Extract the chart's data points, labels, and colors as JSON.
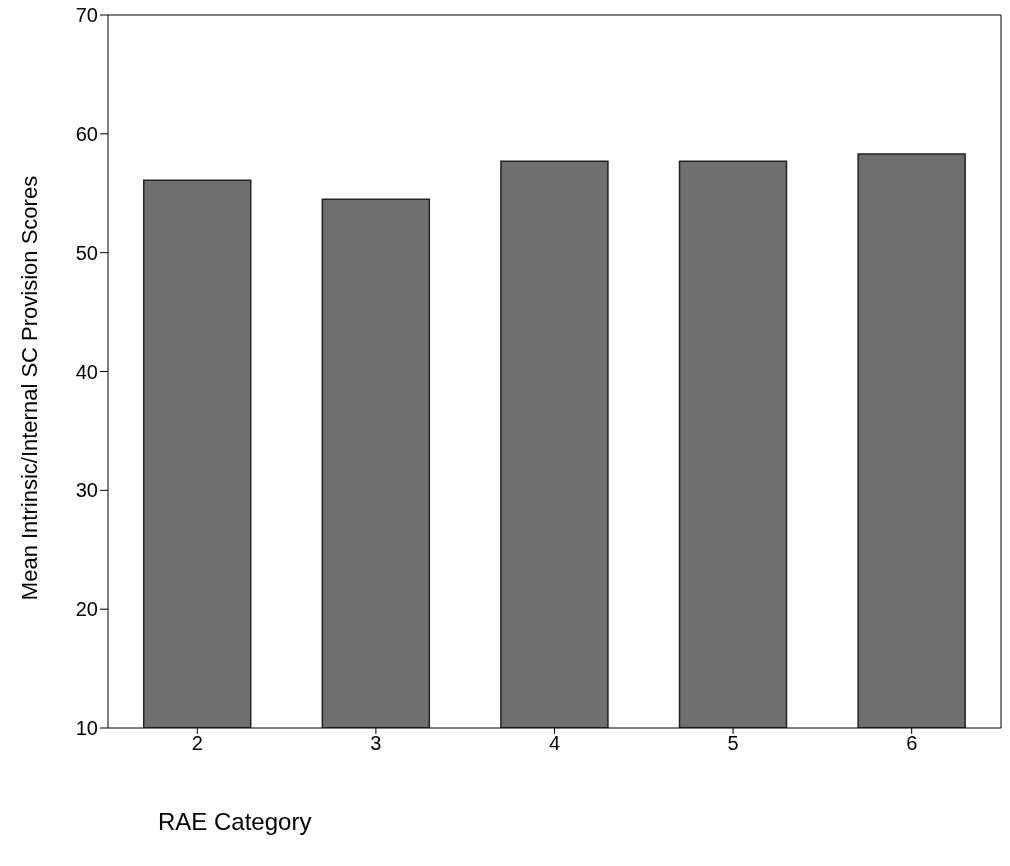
{
  "chart_data": {
    "type": "bar",
    "categories": [
      "2",
      "3",
      "4",
      "5",
      "6"
    ],
    "values": [
      56.1,
      54.5,
      57.7,
      57.7,
      58.3
    ],
    "color": "#6f6f6f",
    "xlabel": "RAE Category",
    "ylabel": "Mean Intrinsic/Internal SC Provision Scores",
    "ylim": [
      10,
      70
    ],
    "yticks": [
      10,
      20,
      30,
      40,
      50,
      60,
      70
    ],
    "grid": false
  }
}
